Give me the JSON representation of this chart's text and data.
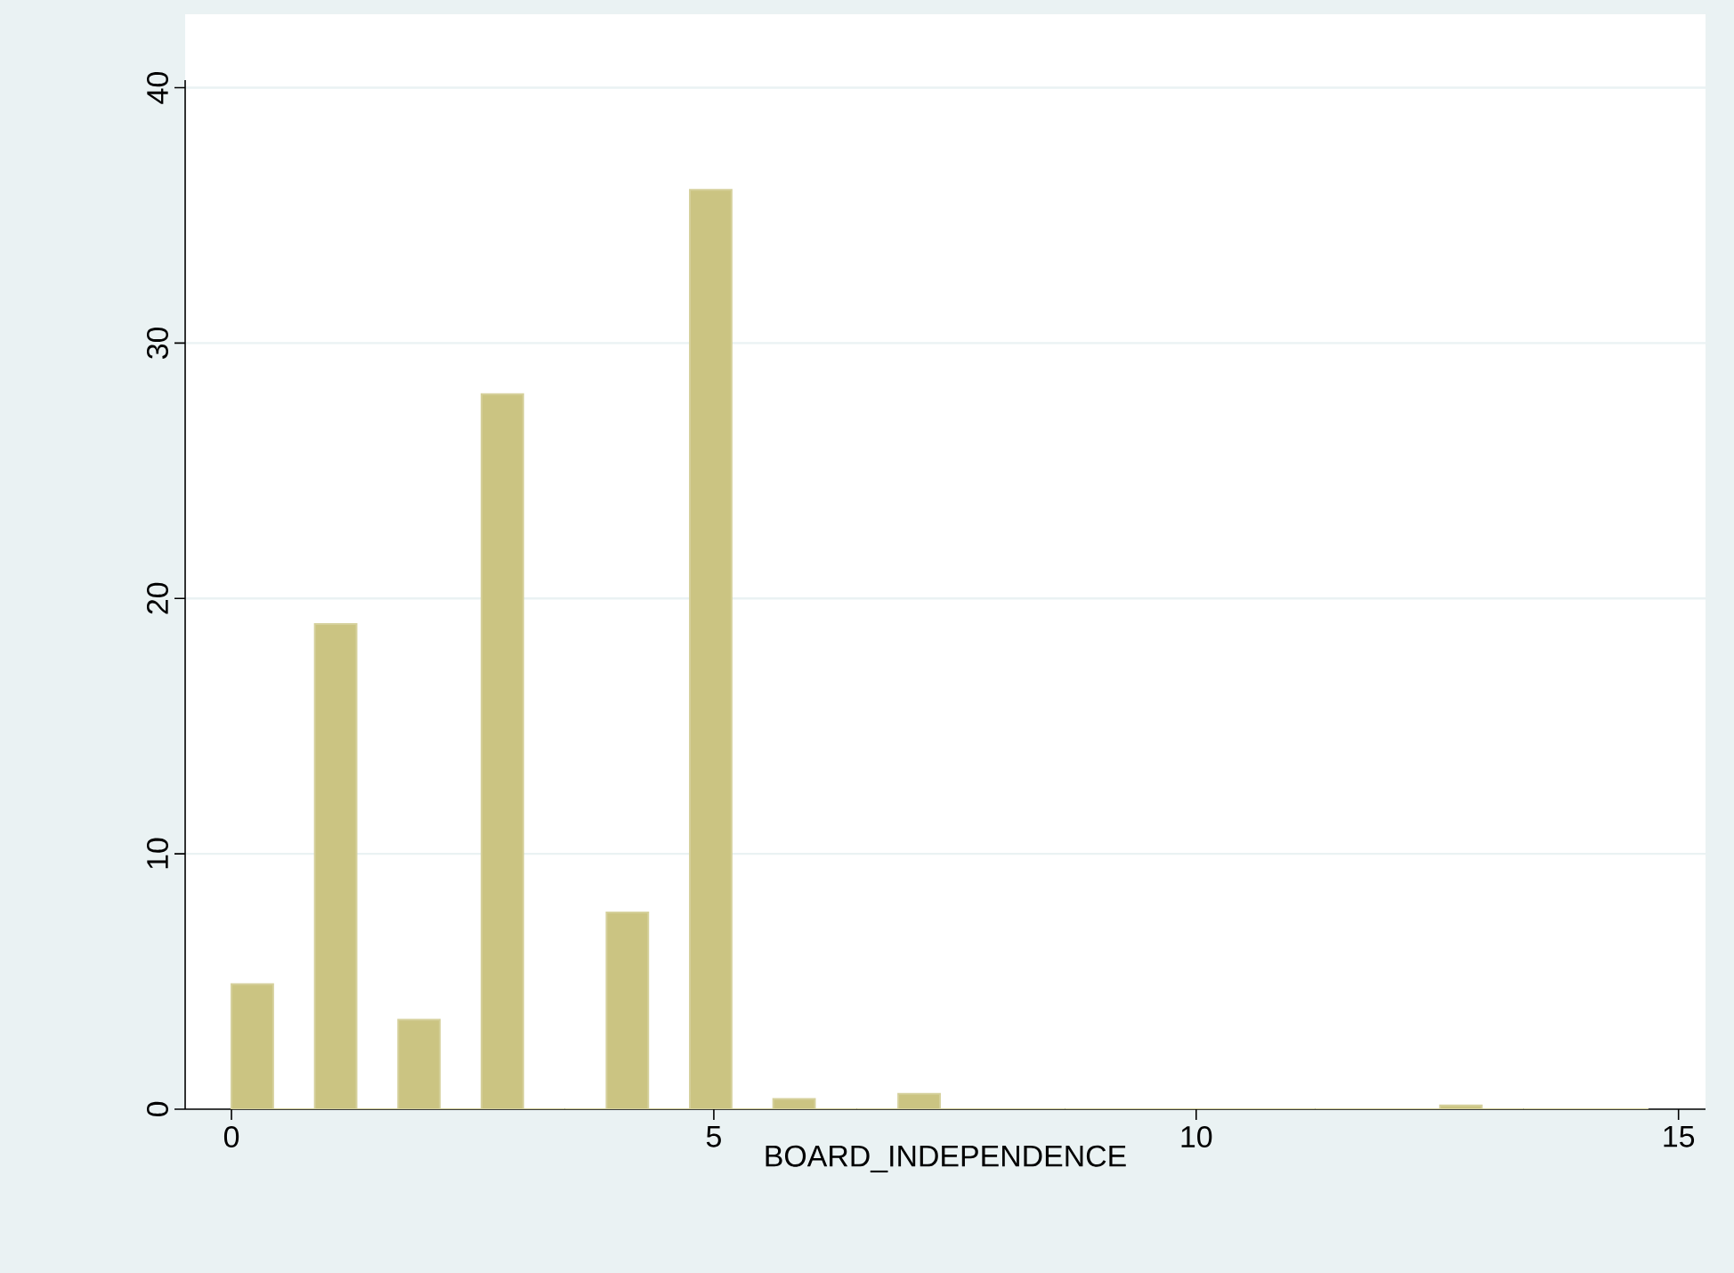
{
  "chart_data": {
    "type": "histogram",
    "xlabel": "BOARD_INDEPENDENCE",
    "bins": [
      0,
      0.432,
      0.864,
      1.296,
      1.728,
      2.16,
      2.592,
      3.024,
      3.456,
      3.888,
      4.32,
      4.752,
      5.184,
      5.616,
      6.048,
      6.48,
      6.912,
      7.344,
      7.776,
      8.208,
      8.64,
      9.072,
      9.504,
      9.936,
      10.368,
      10.8,
      11.232,
      11.664,
      12.096,
      12.528,
      12.96,
      13.392,
      13.824,
      14.256,
      14.688
    ],
    "values": [
      4.9,
      0,
      19,
      0,
      3.5,
      0,
      28,
      0,
      0,
      7.7,
      0,
      36,
      0,
      0.4,
      0,
      0,
      0.6,
      0,
      0,
      0,
      0,
      0,
      0,
      0,
      0,
      0,
      0,
      0,
      0,
      0.15,
      0,
      0,
      0,
      0
    ],
    "color": "#cbc482",
    "xlim": [
      -0.48,
      15.28
    ],
    "ylim": [
      0,
      40.3
    ],
    "xticks": [
      0,
      5,
      10,
      15
    ],
    "yticks": [
      0,
      10,
      20,
      30,
      40
    ],
    "grid": "y"
  }
}
